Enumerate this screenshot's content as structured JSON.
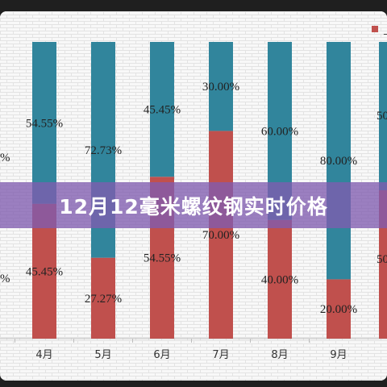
{
  "banner": {
    "title": "12月12毫米螺纹钢实时价格"
  },
  "chart_data": {
    "type": "bar",
    "stacked": true,
    "percent": true,
    "categories": [
      "4月",
      "5月",
      "6月",
      "7月",
      "8月",
      "9月"
    ],
    "series": [
      {
        "color": "#c0504d",
        "values": [
          45.45,
          27.27,
          54.55,
          70.0,
          40.0,
          20.0
        ]
      },
      {
        "color": "#31859c",
        "values": [
          54.55,
          72.73,
          45.45,
          30.0,
          60.0,
          80.0
        ]
      }
    ],
    "labels_bottom": [
      "45.45%",
      "27.27%",
      "54.55%",
      "70.00%",
      "40.00%",
      "20.00%"
    ],
    "labels_top": [
      "54.55%",
      "72.73%",
      "45.45%",
      "30.00%",
      "60.00%",
      "80.00%"
    ],
    "partial_left_labels": [
      "%",
      "%"
    ],
    "partial_right_labels": [
      "50",
      "50"
    ],
    "legend_position": "top-right",
    "grid": true
  }
}
